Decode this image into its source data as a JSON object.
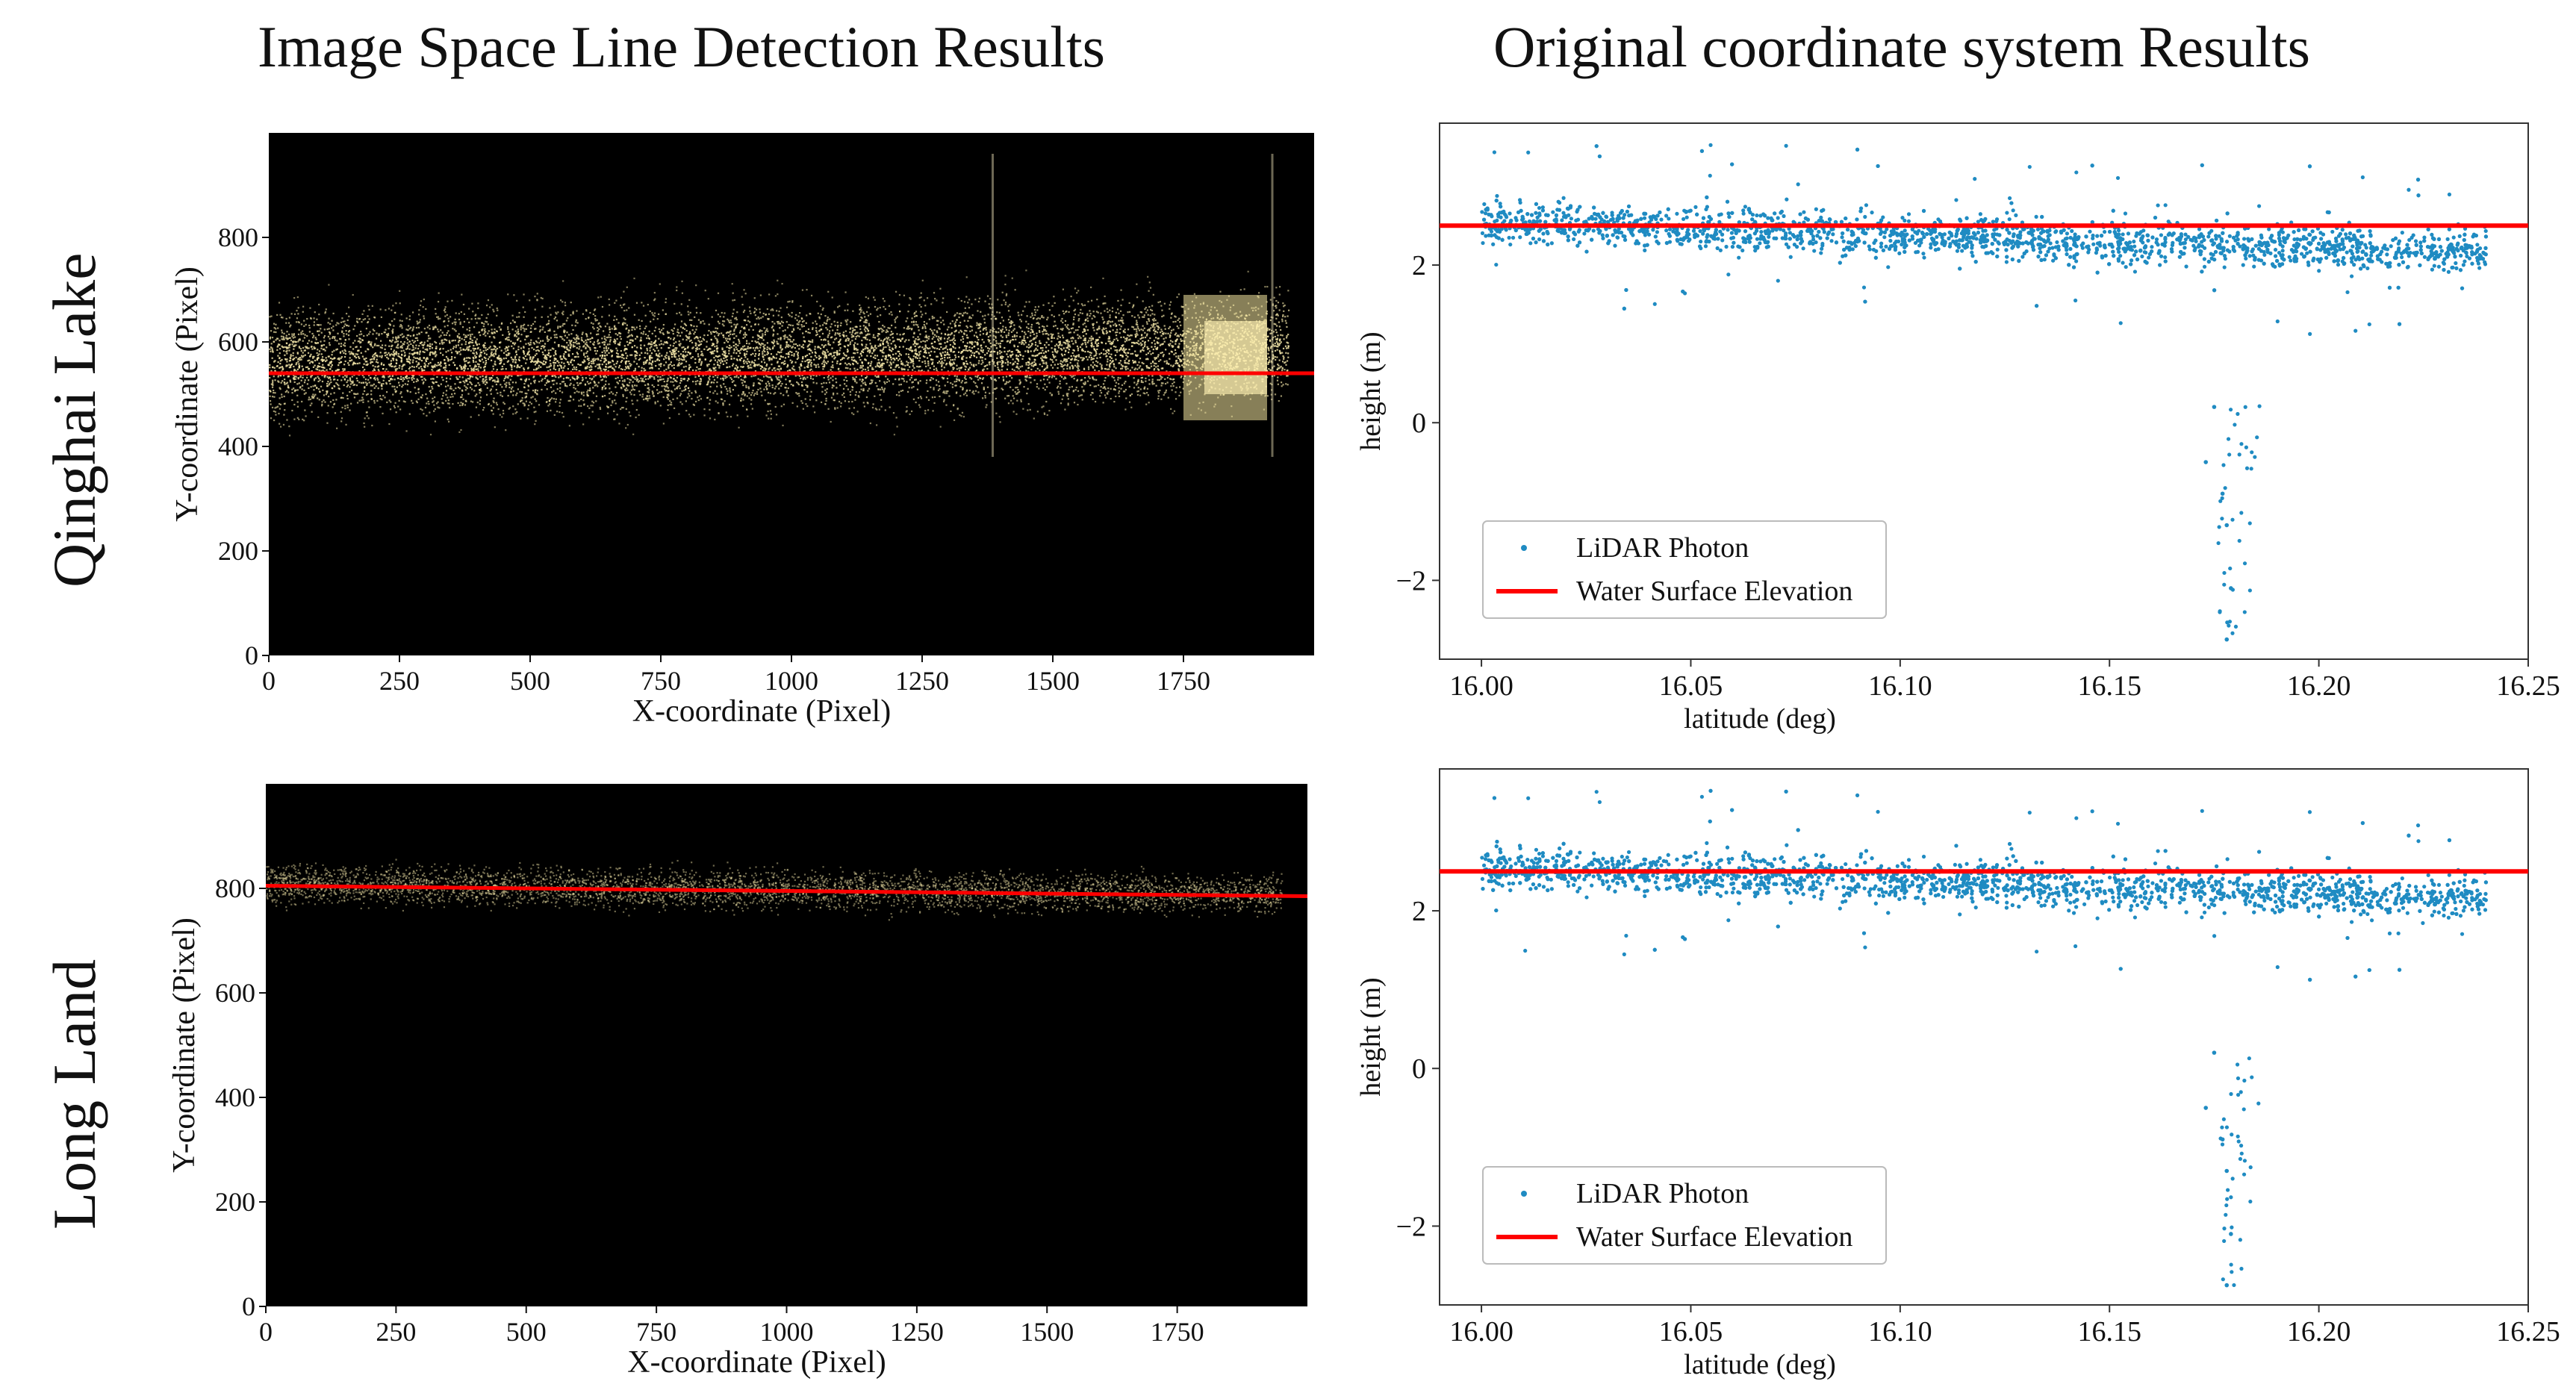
{
  "column_titles": [
    "Image Space Line Detection Results",
    "Original coordinate system Results"
  ],
  "row_titles": [
    "Qinghai Lake",
    "Long Land"
  ],
  "colors": {
    "photon": "#1f8bc2",
    "fit_line": "#ff0000",
    "image_bg": "#000000",
    "image_points": "#f3e6a8"
  },
  "chart_data": [
    {
      "type": "scatter",
      "panel": "Qinghai Lake - image space",
      "xlabel": "X-coordinate (Pixel)",
      "ylabel": "Y-coordinate (Pixel)",
      "xlim": [
        0,
        2000
      ],
      "ylim": [
        0,
        1000
      ],
      "xticks": [
        0,
        250,
        500,
        750,
        1000,
        1250,
        1500,
        1750
      ],
      "yticks": [
        0,
        200,
        400,
        600,
        800
      ],
      "background": "black",
      "point_band": {
        "center_y_at_x0": 560,
        "center_y_at_x1900": 590,
        "spread": 110,
        "bright_region_x": [
          1750,
          1910
        ]
      },
      "vertical_streaks_x": [
        1385,
        1920
      ],
      "fit_line": {
        "x": [
          0,
          2000
        ],
        "y": [
          540,
          540
        ]
      }
    },
    {
      "type": "scatter",
      "panel": "Qinghai Lake - original coordinates",
      "xlabel": "latitude (deg)",
      "ylabel": "height (m)",
      "xlim": [
        15.99,
        16.25
      ],
      "ylim": [
        -3.0,
        3.8
      ],
      "xticks": [
        "16.00",
        "16.05",
        "16.10",
        "16.15",
        "16.20",
        "16.25"
      ],
      "yticks": [
        "2",
        "0",
        "−2"
      ],
      "legend": [
        "LiDAR Photon",
        "Water Surface Elevation"
      ],
      "legend_position": "lower-left",
      "series": [
        {
          "name": "LiDAR Photon",
          "lat_range": [
            16.0,
            16.24
          ],
          "height_start": 2.55,
          "height_end": 2.15,
          "spread": 0.35,
          "outliers": [
            [
              16.175,
              0.2
            ],
            [
              16.177,
              -0.9
            ],
            [
              16.178,
              -1.3
            ],
            [
              16.179,
              -2.1
            ],
            [
              16.178,
              -2.75
            ],
            [
              16.173,
              -0.5
            ]
          ]
        },
        {
          "name": "Water Surface Elevation",
          "x": [
            15.99,
            16.25
          ],
          "y": [
            2.5,
            2.5
          ]
        }
      ]
    },
    {
      "type": "scatter",
      "panel": "Long Land - image space",
      "xlabel": "X-coordinate (Pixel)",
      "ylabel": "Y-coordinate (Pixel)",
      "xlim": [
        0,
        2000
      ],
      "ylim": [
        0,
        1000
      ],
      "xticks": [
        0,
        250,
        500,
        750,
        1000,
        1250,
        1500,
        1750
      ],
      "yticks": [
        0,
        200,
        400,
        600,
        800
      ],
      "background": "black",
      "point_band": {
        "center_y_at_x0": 810,
        "center_y_at_x1900": 790,
        "spread": 40
      },
      "fit_line": {
        "x": [
          0,
          2000
        ],
        "y": [
          805,
          785
        ]
      }
    },
    {
      "type": "scatter",
      "panel": "Long Land - original coordinates",
      "xlabel": "latitude (deg)",
      "ylabel": "height (m)",
      "xlim": [
        15.99,
        16.25
      ],
      "ylim": [
        -3.0,
        3.8
      ],
      "xticks": [
        "16.00",
        "16.05",
        "16.10",
        "16.15",
        "16.20",
        "16.25"
      ],
      "yticks": [
        "2",
        "0",
        "−2"
      ],
      "legend": [
        "LiDAR Photon",
        "Water Surface Elevation"
      ],
      "legend_position": "lower-left",
      "series": [
        {
          "name": "LiDAR Photon",
          "lat_range": [
            16.0,
            16.24
          ],
          "height_start": 2.55,
          "height_end": 2.15,
          "spread": 0.35,
          "outliers": [
            [
              16.175,
              0.2
            ],
            [
              16.177,
              -0.9
            ],
            [
              16.178,
              -1.3
            ],
            [
              16.179,
              -2.1
            ],
            [
              16.178,
              -2.75
            ],
            [
              16.173,
              -0.5
            ]
          ]
        },
        {
          "name": "Water Surface Elevation",
          "x": [
            15.99,
            16.25
          ],
          "y": [
            2.5,
            2.5
          ]
        }
      ]
    }
  ]
}
